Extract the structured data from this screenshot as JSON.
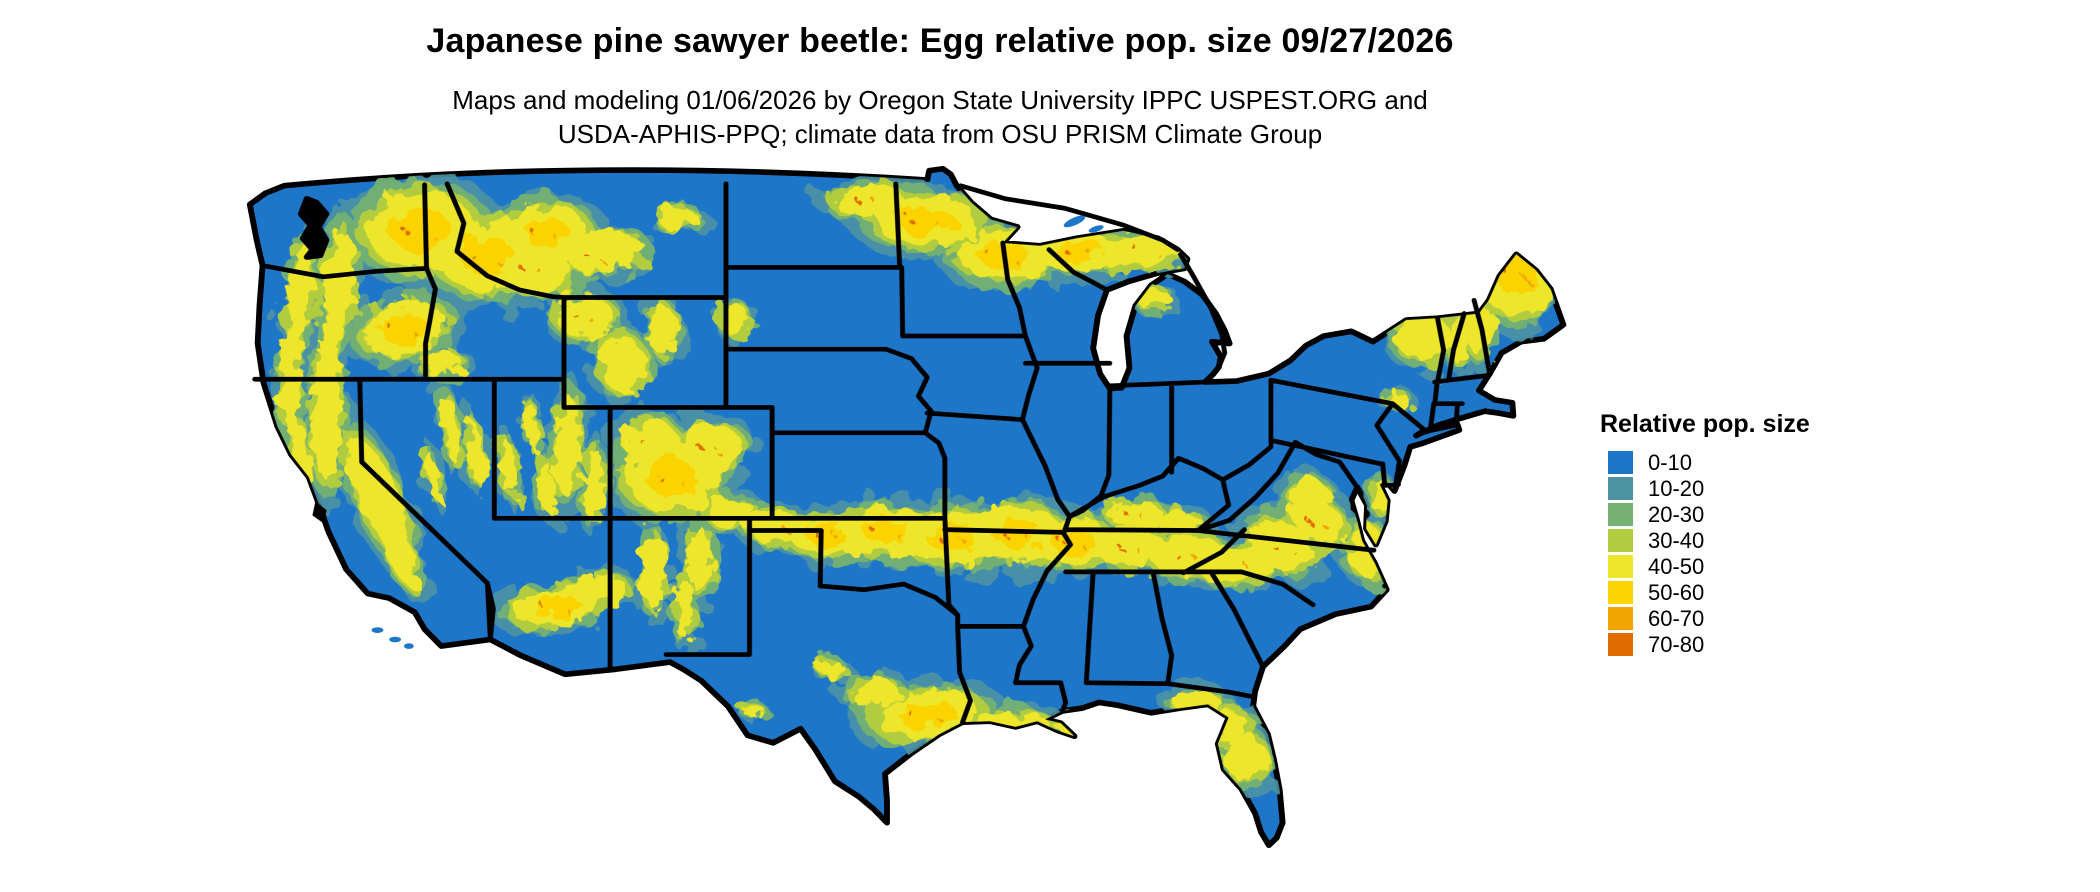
{
  "header": {
    "title": "Japanese pine sawyer beetle: Egg relative pop. size 09/27/2026",
    "subtitle_line1": "Maps and modeling 01/06/2026 by Oregon State University IPPC USPEST.ORG and",
    "subtitle_line2": "USDA-APHIS-PPQ; climate data from OSU PRISM Climate Group"
  },
  "legend": {
    "title": "Relative pop. size",
    "classes": [
      {
        "label": "0-10",
        "color": "#1e76c8"
      },
      {
        "label": "10-20",
        "color": "#4e93a3"
      },
      {
        "label": "20-30",
        "color": "#74b173"
      },
      {
        "label": "30-40",
        "color": "#b2cc41"
      },
      {
        "label": "40-50",
        "color": "#eee62b"
      },
      {
        "label": "50-60",
        "color": "#fbd402"
      },
      {
        "label": "60-70",
        "color": "#f0a400"
      },
      {
        "label": "70-80",
        "color": "#e06c00"
      }
    ]
  },
  "map": {
    "region": "Contiguous United States",
    "border_color": "#000000",
    "water_color": "#ffffff"
  }
}
